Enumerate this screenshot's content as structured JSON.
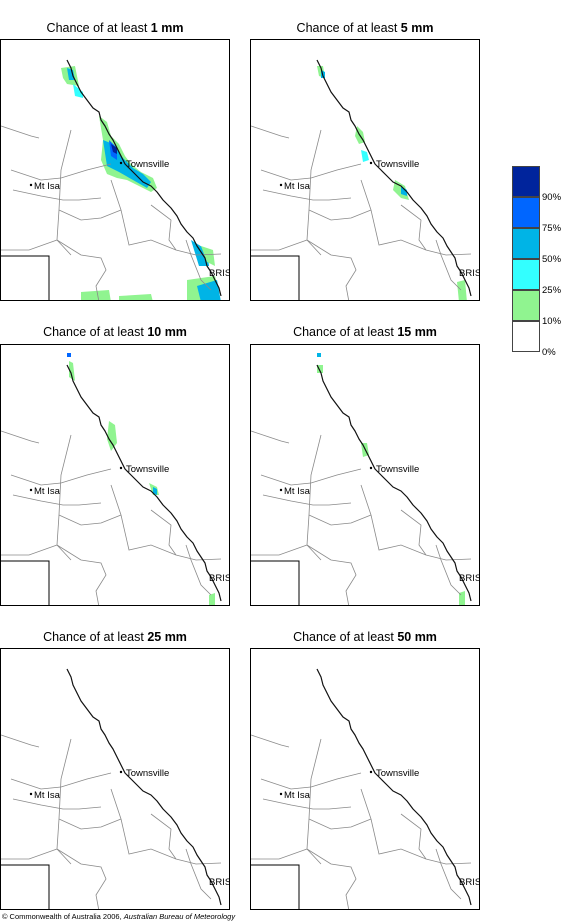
{
  "title_prefix": "Chance of at least",
  "panels": [
    {
      "amount": "1 mm"
    },
    {
      "amount": "5 mm"
    },
    {
      "amount": "10 mm"
    },
    {
      "amount": "15 mm"
    },
    {
      "amount": "25 mm"
    },
    {
      "amount": "50 mm"
    }
  ],
  "place_labels": {
    "townsville": "Townsville",
    "mt_isa": "Mt Isa",
    "bris": "BRIS"
  },
  "legend": {
    "labels": [
      "90%",
      "75%",
      "50%",
      "25%",
      "10%",
      "0%"
    ],
    "colors": [
      "#00249c",
      "#0066ff",
      "#00b4e6",
      "#33ffff",
      "#90f490",
      "#ffffff"
    ]
  },
  "footer": {
    "symbol": "©",
    "text": "Commonwealth of Australia 2006,",
    "org": "Australian Bureau of Meteorology"
  }
}
